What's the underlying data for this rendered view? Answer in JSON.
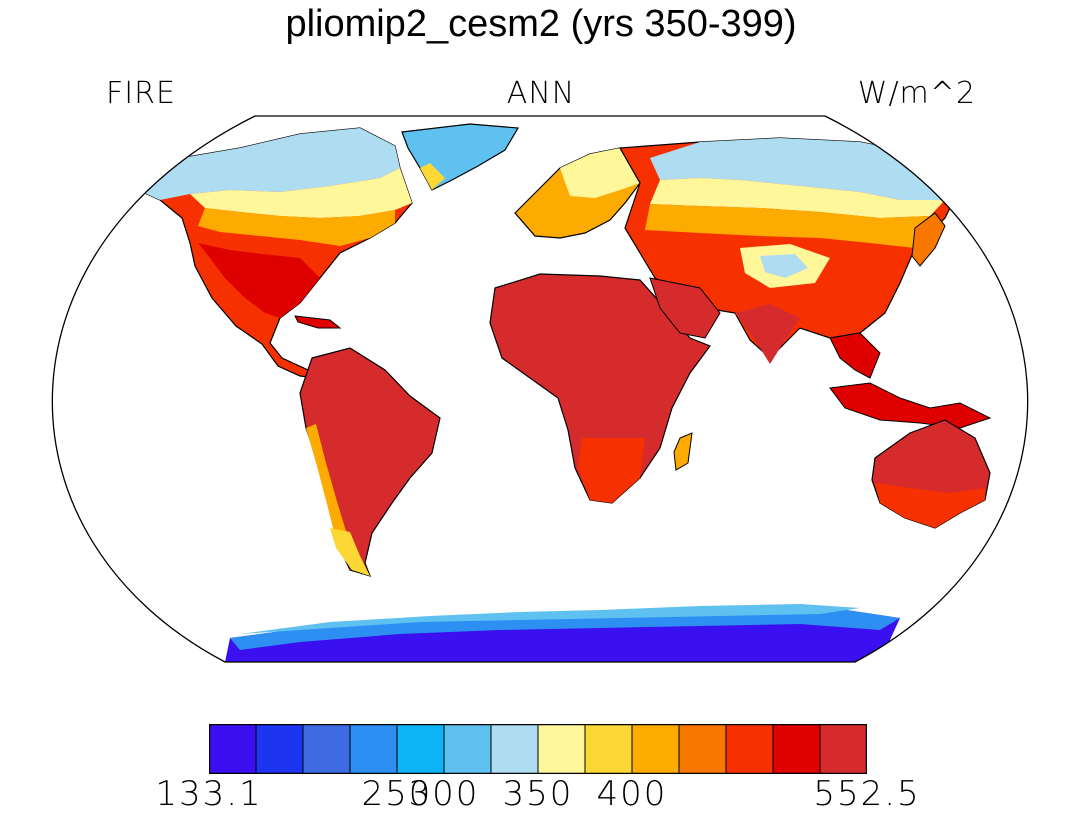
{
  "title": "pliomip2_cesm2 (yrs 350-399)",
  "labels": {
    "left": "FIRE",
    "center": "ANN",
    "right": "W/m^2"
  },
  "legend": {
    "colors": [
      "#3a10f0",
      "#1d34f0",
      "#3e6be2",
      "#2d8ff2",
      "#0db4f5",
      "#5ec1f0",
      "#aedcf1",
      "#fff79a",
      "#fdd835",
      "#fdab00",
      "#f97800",
      "#f73000",
      "#df0000",
      "#d52b2d"
    ],
    "tick_labels": [
      {
        "text": "133.1",
        "boundary": 0
      },
      {
        "text": "250",
        "boundary": 4
      },
      {
        "text": "300",
        "boundary": 5
      },
      {
        "text": "350",
        "boundary": 7
      },
      {
        "text": "400",
        "boundary": 9
      },
      {
        "text": "552.5",
        "boundary": 14
      }
    ]
  }
}
